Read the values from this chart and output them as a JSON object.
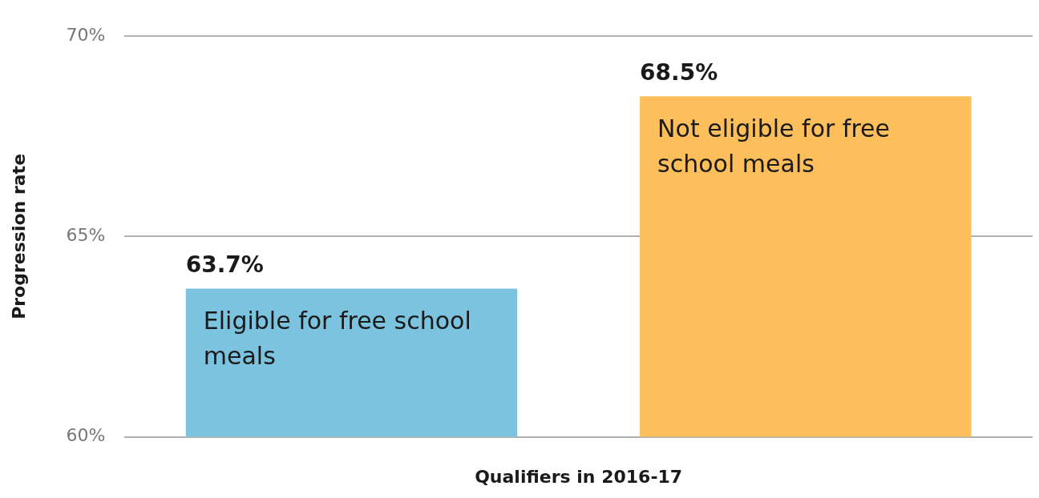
{
  "chart_data": {
    "type": "bar",
    "xlabel": "Qualifiers in 2016-17",
    "ylabel": "Progression rate",
    "categories": [
      "Eligible for free school meals",
      "Not eligible for free school meals"
    ],
    "values": [
      63.7,
      68.5
    ],
    "colors": [
      "#7cc3e0",
      "#fdbe5c"
    ],
    "value_labels": [
      "63.7%",
      "68.5%"
    ],
    "ylim": [
      60,
      70
    ],
    "yticks": [
      {
        "value": 60,
        "label": "60%"
      },
      {
        "value": 65,
        "label": "65%"
      },
      {
        "value": 70,
        "label": "70%"
      }
    ],
    "grid": "y",
    "legend": false
  }
}
